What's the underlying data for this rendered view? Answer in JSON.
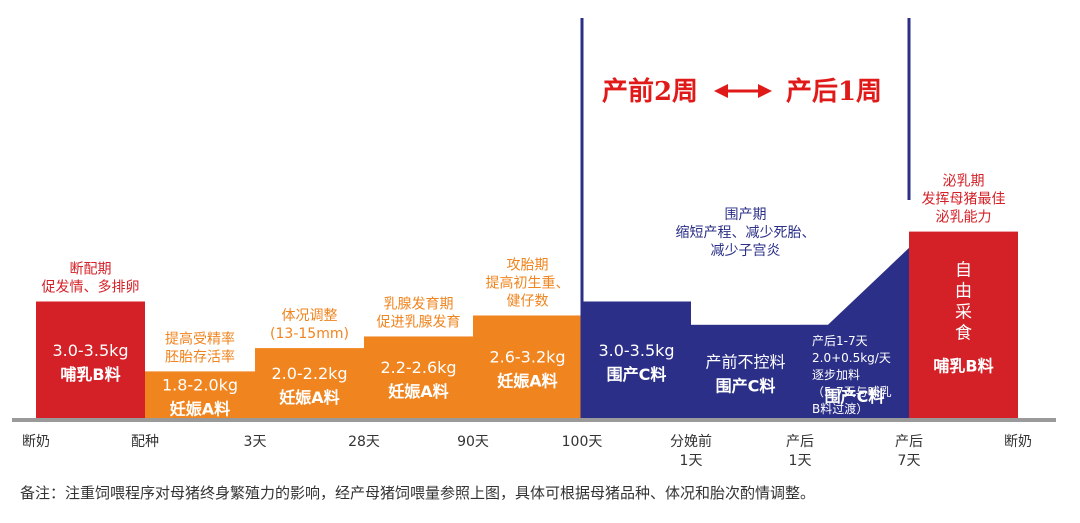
{
  "chart_data": {
    "type": "bar",
    "title": "产前2周 ⟷ 产后1周",
    "colors": {
      "red": "#d42027",
      "orange": "#f0841e",
      "navy": "#2b2f87",
      "ground": "#9a9a9a",
      "title_red": "#e01919",
      "text_dark": "#333333"
    },
    "x_ticks": [
      [
        "断奶"
      ],
      [
        "配种"
      ],
      [
        "3天"
      ],
      [
        "28天"
      ],
      [
        "90天"
      ],
      [
        "100天"
      ],
      [
        "分娩前",
        "1天"
      ],
      [
        "产后",
        "1天"
      ],
      [
        "产后",
        "7天"
      ],
      [
        "断奶"
      ]
    ],
    "stages": [
      {
        "from": 0,
        "to": 1,
        "level": 5,
        "color": "red",
        "annotation": [
          "断配期",
          "促发情、多排卵"
        ],
        "range": "3.0-3.5kg",
        "feed": "哺乳B料"
      },
      {
        "from": 1,
        "to": 2,
        "level": 2,
        "color": "orange",
        "annotation": [
          "提高受精率",
          "胚胎存活率"
        ],
        "range": "1.8-2.0kg",
        "feed": "妊娠A料"
      },
      {
        "from": 2,
        "to": 3,
        "level": 3,
        "color": "orange",
        "annotation": [
          "体况调整",
          "(13-15mm)"
        ],
        "range": "2.0-2.2kg",
        "feed": "妊娠A料"
      },
      {
        "from": 3,
        "to": 4,
        "level": 3.5,
        "color": "orange",
        "annotation": [
          "乳腺发育期",
          "促进乳腺发育"
        ],
        "range": "2.2-2.6kg",
        "feed": "妊娠A料"
      },
      {
        "from": 4,
        "to": 5,
        "level": 4.4,
        "color": "orange",
        "annotation": [
          "攻胎期",
          "提高初生重、",
          "健仔数"
        ],
        "range": "2.6-3.2kg",
        "feed": "妊娠A料"
      },
      {
        "from": 5,
        "to": 6,
        "level": 5,
        "color": "navy",
        "annotation": [],
        "range": "3.0-3.5kg",
        "feed": "围产C料"
      },
      {
        "from": 6,
        "to": 7,
        "level": 4,
        "color": "navy",
        "annotation": [
          "围产期",
          "缩短产程、减少死胎、",
          "减少子宫炎"
        ],
        "range": "产前不控料",
        "feed": "围产C料"
      },
      {
        "from": 7,
        "to": 8,
        "level_start": 4,
        "level_end": 7.3,
        "color": "navy",
        "annotation": [],
        "range": "",
        "feed": "围产C料",
        "detail": [
          "产后1-7天",
          "2.0+0.5kg/天",
          "逐步加料",
          "（5-7天与哺乳",
          "B料过渡）"
        ]
      },
      {
        "from": 8,
        "to": 9,
        "level": 8,
        "color": "red",
        "annotation": [
          "泌乳期",
          "发挥母猪最佳",
          "泌乳能力"
        ],
        "range": "自由采食",
        "feed": "哺乳B料",
        "vertical_range": true
      }
    ]
  },
  "note": "备注：注重饲喂程序对母猪终身繁殖力的影响，经产母猪饲喂量参照上图，具体可根据母猪品种、体况和胎次酌情调整。"
}
